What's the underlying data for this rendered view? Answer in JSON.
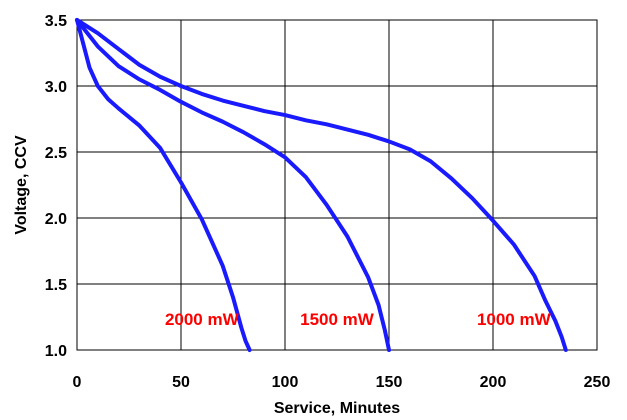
{
  "chart_data": {
    "type": "line",
    "title": "",
    "xlabel": "Service, Minutes",
    "ylabel": "Voltage, CCV",
    "xlim": [
      0,
      250
    ],
    "ylim": [
      1.0,
      3.5
    ],
    "xticks": [
      0,
      50,
      100,
      150,
      200,
      250
    ],
    "yticks": [
      1.0,
      1.5,
      2.0,
      2.5,
      3.0,
      3.5
    ],
    "ytick_labels": [
      "1.0",
      "1.5",
      "2.0",
      "2.5",
      "3.0",
      "3.5"
    ],
    "grid": true,
    "line_color": "#1a1aff",
    "annotation_color": "#ff0000",
    "series": [
      {
        "label": "2000 mW",
        "x": [
          0,
          3,
          6,
          10,
          15,
          20,
          30,
          40,
          50,
          60,
          70,
          75,
          79,
          81,
          83
        ],
        "y": [
          3.5,
          3.32,
          3.14,
          3.0,
          2.9,
          2.83,
          2.7,
          2.53,
          2.27,
          1.99,
          1.64,
          1.4,
          1.17,
          1.07,
          1.0
        ],
        "label_x": 60,
        "label_y": 1.19
      },
      {
        "label": "1500 mW",
        "x": [
          0,
          10,
          20,
          30,
          40,
          50,
          60,
          70,
          80,
          90,
          100,
          110,
          120,
          130,
          140,
          145,
          148,
          150
        ],
        "y": [
          3.5,
          3.3,
          3.15,
          3.05,
          2.97,
          2.88,
          2.8,
          2.73,
          2.65,
          2.56,
          2.46,
          2.31,
          2.1,
          1.86,
          1.55,
          1.34,
          1.15,
          1.0
        ],
        "label_x": 125,
        "label_y": 1.19
      },
      {
        "label": "1000 mW",
        "x": [
          0,
          10,
          20,
          30,
          40,
          50,
          60,
          70,
          80,
          90,
          100,
          110,
          120,
          130,
          140,
          150,
          160,
          170,
          180,
          190,
          200,
          210,
          220,
          225,
          230,
          233,
          235
        ],
        "y": [
          3.5,
          3.4,
          3.28,
          3.16,
          3.07,
          3.0,
          2.94,
          2.89,
          2.85,
          2.81,
          2.78,
          2.74,
          2.71,
          2.67,
          2.63,
          2.58,
          2.52,
          2.43,
          2.3,
          2.15,
          1.98,
          1.8,
          1.56,
          1.38,
          1.22,
          1.1,
          1.0
        ],
        "label_x": 210,
        "label_y": 1.19
      }
    ]
  }
}
